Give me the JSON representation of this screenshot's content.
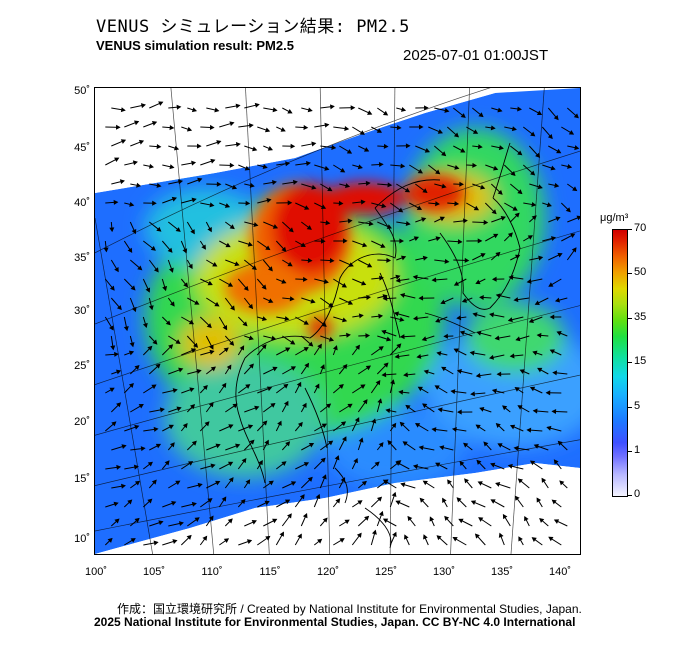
{
  "header": {
    "title_jp": "VENUS シミュレーション結果: PM2.5",
    "title_en": "VENUS simulation result: PM2.5",
    "timestamp": "2025-07-01 01:00JST"
  },
  "map": {
    "lat_labels": [
      "50˚",
      "45˚",
      "40˚",
      "35˚",
      "30˚",
      "25˚",
      "20˚",
      "15˚",
      "10˚"
    ],
    "lon_labels": [
      "100˚",
      "105˚",
      "110˚",
      "115˚",
      "120˚",
      "125˚",
      "130˚",
      "135˚",
      "140˚"
    ],
    "region": "East Asia",
    "layers": [
      "PM2.5 concentration",
      "wind vectors",
      "coastlines",
      "graticule"
    ]
  },
  "colorbar": {
    "unit": "μg/m³",
    "labels": [
      "70",
      "50",
      "35",
      "15",
      "5",
      "1",
      "0"
    ],
    "colors": {
      "high": "#d00000",
      "upper": "#f06000",
      "mid_high": "#e0d800",
      "mid": "#20e040",
      "low_mid": "#10d8e8",
      "low": "#1e78ff",
      "very_low": "#b8b8ff",
      "zero": "#f4f4ff"
    }
  },
  "footer": {
    "credit": "作成：国立環境研究所 / Created by National Institute for Environmental Studies, Japan.",
    "license": "2025 National Institute for Environmental Studies, Japan. CC BY-NC 4.0 International"
  }
}
